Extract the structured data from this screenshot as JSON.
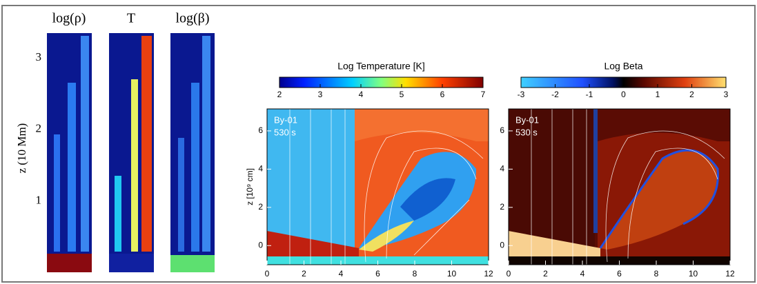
{
  "left": {
    "titles": [
      "log(ρ)",
      "T",
      "log(β)"
    ],
    "ylabel": "z (10 Mm)",
    "yticks": [
      1,
      2,
      3
    ],
    "ylim": [
      0,
      3.35
    ]
  },
  "panels": [
    {
      "colorbar": {
        "label": "Log Temperature [K]",
        "ticks": [
          2,
          3,
          4,
          5,
          6,
          7
        ],
        "lim": [
          2,
          7
        ]
      },
      "labels": [
        "By-01",
        "530 s"
      ],
      "ylabel": "z [10⁹ cm]",
      "xlim": [
        0,
        12
      ],
      "xticks": [
        0,
        2,
        4,
        6,
        8,
        10,
        12
      ],
      "ylim": [
        -1,
        7.15
      ],
      "yticks": [
        0,
        2,
        4,
        6
      ]
    },
    {
      "colorbar": {
        "label": "Log Beta",
        "ticks": [
          -3,
          -2,
          -1,
          0,
          1,
          2,
          3
        ],
        "lim": [
          -3,
          3
        ]
      },
      "labels": [
        "By-01",
        "530 s"
      ],
      "xlim": [
        0,
        12
      ],
      "xticks": [
        0,
        2,
        4,
        6,
        8,
        10,
        12
      ],
      "ylim": [
        -1,
        7.15
      ],
      "yticks": [
        0,
        2,
        4,
        6
      ]
    }
  ]
}
